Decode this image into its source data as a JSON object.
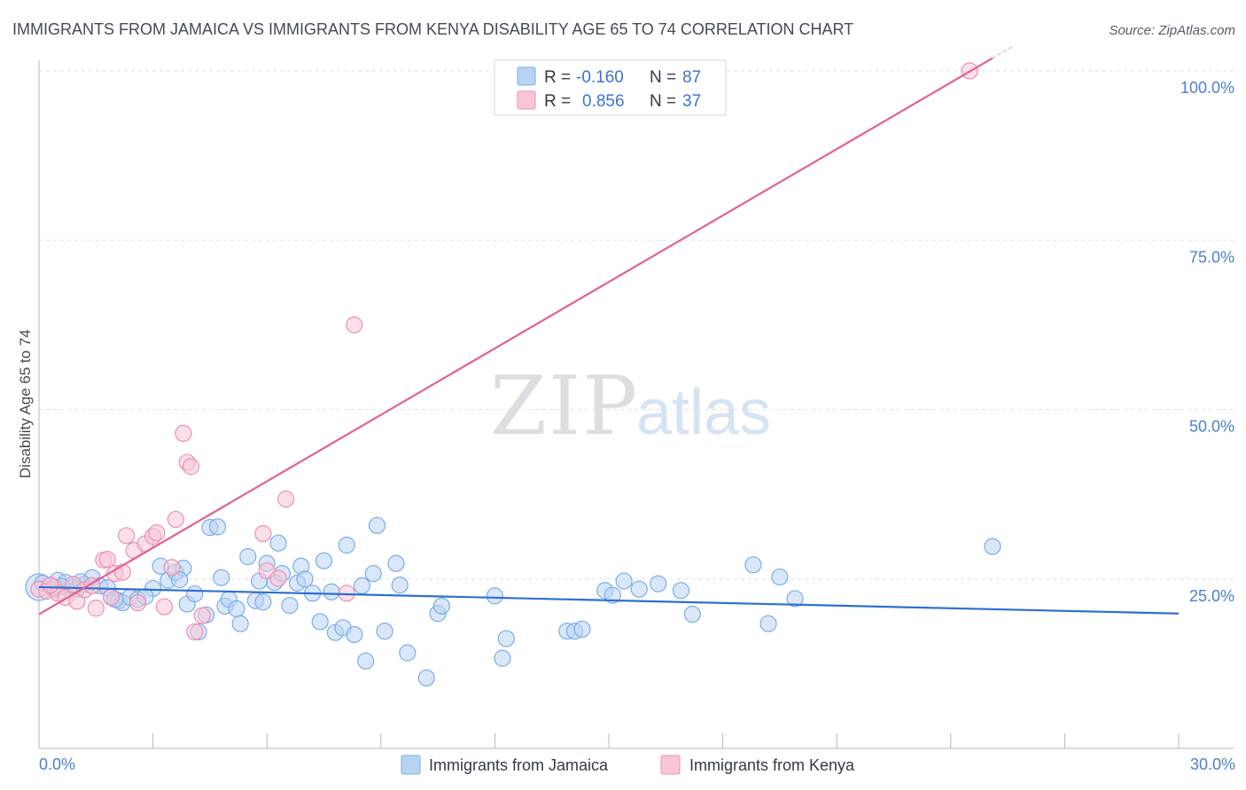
{
  "chart_data": {
    "type": "scatter",
    "title": "IMMIGRANTS FROM JAMAICA VS IMMIGRANTS FROM KENYA DISABILITY AGE 65 TO 74 CORRELATION CHART",
    "source": "Source: ZipAtlas.com",
    "xlabel": "",
    "ylabel": "Disability Age 65 to 74",
    "xlim": [
      0,
      30
    ],
    "ylim": [
      0,
      105
    ],
    "x_tick_labels": [
      "0.0%",
      "30.0%"
    ],
    "y_ticks": [
      25,
      50,
      75,
      100
    ],
    "y_tick_labels": [
      "25.0%",
      "50.0%",
      "75.0%",
      "100.0%"
    ],
    "watermark": {
      "zip": "ZIP",
      "atlas": "atlas"
    },
    "legend": {
      "r_label": "R =",
      "n_label": "N =",
      "entries": [
        {
          "r": "-0.160",
          "n": "87"
        },
        {
          "r": "0.856",
          "n": "37"
        }
      ]
    },
    "series": [
      {
        "name": "Immigrants from Jamaica",
        "color": "#7aaee8",
        "fill": "#b9d3f3",
        "trend": {
          "x": [
            0,
            30
          ],
          "y": [
            23.8,
            19.9
          ]
        },
        "points": [
          [
            0.0,
            23.8
          ],
          [
            0.3,
            24.0
          ],
          [
            0.4,
            23.5
          ],
          [
            0.5,
            24.8
          ],
          [
            0.7,
            24.5
          ],
          [
            0.9,
            23.8
          ],
          [
            1.0,
            23.5
          ],
          [
            1.2,
            24.2
          ],
          [
            1.4,
            25.2
          ],
          [
            1.6,
            24.0
          ],
          [
            1.9,
            22.4
          ],
          [
            2.1,
            21.8
          ],
          [
            2.2,
            21.5
          ],
          [
            2.4,
            22.3
          ],
          [
            2.6,
            22.0
          ],
          [
            3.0,
            23.6
          ],
          [
            3.2,
            26.9
          ],
          [
            3.4,
            24.8
          ],
          [
            3.6,
            26.0
          ],
          [
            3.8,
            26.6
          ],
          [
            3.9,
            21.3
          ],
          [
            4.1,
            22.8
          ],
          [
            4.2,
            17.2
          ],
          [
            4.4,
            19.7
          ],
          [
            4.5,
            32.6
          ],
          [
            4.7,
            32.7
          ],
          [
            4.8,
            25.2
          ],
          [
            4.9,
            21.0
          ],
          [
            5.0,
            22.0
          ],
          [
            5.2,
            20.6
          ],
          [
            5.3,
            18.4
          ],
          [
            5.5,
            28.3
          ],
          [
            5.7,
            21.8
          ],
          [
            5.9,
            21.6
          ],
          [
            6.0,
            27.3
          ],
          [
            6.2,
            24.5
          ],
          [
            6.3,
            30.3
          ],
          [
            6.4,
            25.8
          ],
          [
            6.6,
            21.1
          ],
          [
            6.8,
            24.4
          ],
          [
            6.9,
            26.9
          ],
          [
            7.0,
            25.0
          ],
          [
            7.2,
            22.9
          ],
          [
            7.4,
            18.7
          ],
          [
            7.5,
            27.7
          ],
          [
            7.7,
            23.1
          ],
          [
            7.8,
            17.1
          ],
          [
            8.0,
            17.8
          ],
          [
            8.1,
            30.0
          ],
          [
            8.3,
            16.8
          ],
          [
            8.5,
            24.0
          ],
          [
            8.6,
            12.9
          ],
          [
            8.8,
            25.8
          ],
          [
            8.9,
            32.9
          ],
          [
            9.1,
            17.3
          ],
          [
            9.4,
            27.3
          ],
          [
            9.5,
            24.1
          ],
          [
            9.7,
            14.1
          ],
          [
            10.2,
            10.4
          ],
          [
            10.5,
            19.9
          ],
          [
            10.6,
            21.0
          ],
          [
            12.0,
            22.5
          ],
          [
            12.3,
            16.2
          ],
          [
            12.2,
            13.3
          ],
          [
            13.9,
            17.3
          ],
          [
            14.1,
            17.3
          ],
          [
            14.3,
            17.6
          ],
          [
            14.9,
            23.3
          ],
          [
            15.1,
            22.6
          ],
          [
            15.4,
            24.7
          ],
          [
            15.8,
            23.5
          ],
          [
            16.3,
            24.3
          ],
          [
            16.9,
            23.3
          ],
          [
            17.2,
            19.8
          ],
          [
            18.8,
            27.1
          ],
          [
            19.2,
            18.4
          ],
          [
            19.5,
            25.3
          ],
          [
            19.9,
            22.1
          ],
          [
            25.1,
            29.8
          ],
          [
            0.1,
            24.4
          ],
          [
            0.6,
            23.9
          ],
          [
            1.1,
            24.6
          ],
          [
            1.8,
            23.7
          ],
          [
            2.0,
            22.0
          ],
          [
            2.8,
            22.4
          ],
          [
            3.7,
            24.9
          ],
          [
            5.8,
            24.7
          ]
        ]
      },
      {
        "name": "Immigrants from Kenya",
        "color": "#ee8fb0",
        "fill": "#f8c7d7",
        "trend": {
          "x": [
            0,
            25.6
          ],
          "y": [
            19.8,
            103.5
          ]
        },
        "points": [
          [
            0.0,
            23.5
          ],
          [
            0.2,
            23.2
          ],
          [
            0.4,
            23.8
          ],
          [
            0.5,
            22.9
          ],
          [
            0.7,
            22.3
          ],
          [
            0.9,
            24.2
          ],
          [
            1.0,
            21.7
          ],
          [
            1.2,
            23.4
          ],
          [
            1.4,
            24.0
          ],
          [
            1.5,
            20.7
          ],
          [
            1.7,
            27.8
          ],
          [
            1.8,
            27.9
          ],
          [
            1.9,
            22.3
          ],
          [
            2.0,
            25.8
          ],
          [
            2.2,
            26.0
          ],
          [
            2.3,
            31.4
          ],
          [
            2.5,
            29.2
          ],
          [
            2.6,
            21.5
          ],
          [
            2.8,
            30.2
          ],
          [
            3.0,
            31.3
          ],
          [
            3.1,
            31.8
          ],
          [
            3.3,
            20.9
          ],
          [
            3.5,
            26.7
          ],
          [
            3.6,
            33.8
          ],
          [
            3.8,
            46.5
          ],
          [
            3.9,
            42.2
          ],
          [
            4.0,
            41.6
          ],
          [
            4.1,
            17.2
          ],
          [
            4.3,
            19.6
          ],
          [
            5.9,
            31.7
          ],
          [
            6.0,
            26.2
          ],
          [
            6.3,
            25.1
          ],
          [
            6.5,
            36.8
          ],
          [
            8.1,
            22.9
          ],
          [
            8.3,
            62.5
          ],
          [
            24.5,
            100.0
          ],
          [
            0.3,
            24.1
          ]
        ]
      }
    ]
  }
}
